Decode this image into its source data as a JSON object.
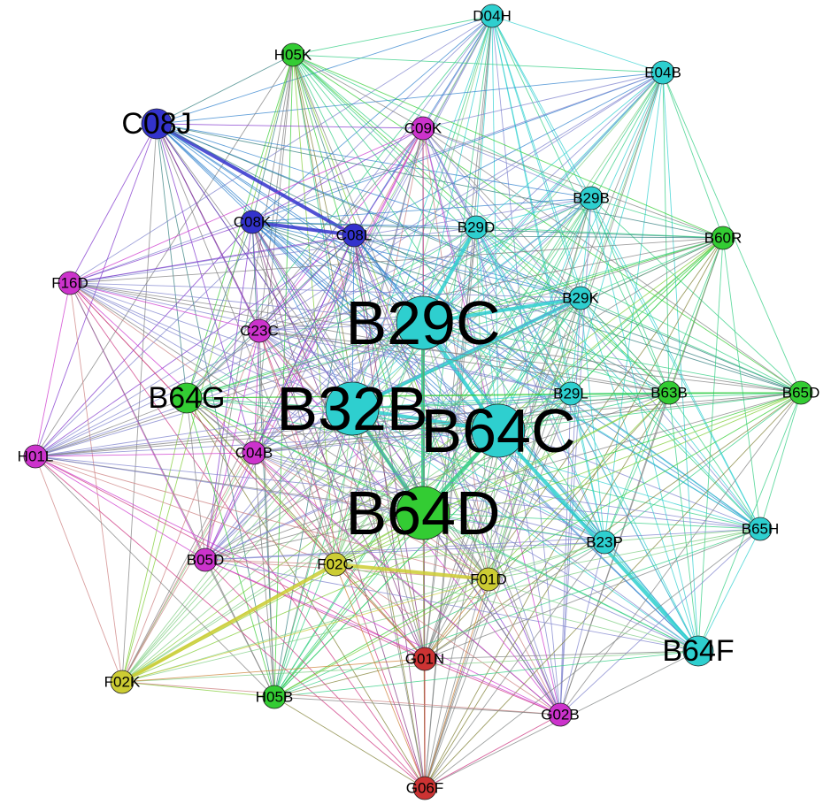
{
  "palette": {
    "cyan": "#2ecfcf",
    "green": "#33cc33",
    "blue": "#3333cc",
    "magenta": "#cc33cc",
    "yellow": "#cccc33",
    "red": "#cc3333"
  },
  "nodes": [
    {
      "id": "D04H",
      "label": "D04H",
      "color": "cyan",
      "size": "small"
    },
    {
      "id": "E04B",
      "label": "E04B",
      "color": "cyan",
      "size": "small"
    },
    {
      "id": "H05K",
      "label": "H05K",
      "color": "green",
      "size": "small"
    },
    {
      "id": "C08J",
      "label": "C08J",
      "color": "blue",
      "size": "medium"
    },
    {
      "id": "C09K",
      "label": "C09K",
      "color": "magenta",
      "size": "small"
    },
    {
      "id": "B29B",
      "label": "B29B",
      "color": "cyan",
      "size": "small"
    },
    {
      "id": "C08K",
      "label": "C08K",
      "color": "blue",
      "size": "small"
    },
    {
      "id": "C08L",
      "label": "C08L",
      "color": "blue",
      "size": "small"
    },
    {
      "id": "B29D",
      "label": "B29D",
      "color": "cyan",
      "size": "small"
    },
    {
      "id": "B60R",
      "label": "B60R",
      "color": "green",
      "size": "small"
    },
    {
      "id": "F16D",
      "label": "F16D",
      "color": "magenta",
      "size": "small"
    },
    {
      "id": "B29K",
      "label": "B29K",
      "color": "cyan",
      "size": "small"
    },
    {
      "id": "B29C",
      "label": "B29C",
      "color": "cyan",
      "size": "huge"
    },
    {
      "id": "C23C",
      "label": "C23C",
      "color": "magenta",
      "size": "small"
    },
    {
      "id": "B64G",
      "label": "B64G",
      "color": "green",
      "size": "medium"
    },
    {
      "id": "B32B",
      "label": "B32B",
      "color": "cyan",
      "size": "huge"
    },
    {
      "id": "B29L",
      "label": "B29L",
      "color": "cyan",
      "size": "small"
    },
    {
      "id": "B63B",
      "label": "B63B",
      "color": "green",
      "size": "small"
    },
    {
      "id": "B65D",
      "label": "B65D",
      "color": "green",
      "size": "small"
    },
    {
      "id": "B64C",
      "label": "B64C",
      "color": "cyan",
      "size": "huge"
    },
    {
      "id": "H01L",
      "label": "H01L",
      "color": "magenta",
      "size": "small"
    },
    {
      "id": "C04B",
      "label": "C04B",
      "color": "magenta",
      "size": "small"
    },
    {
      "id": "B64D",
      "label": "B64D",
      "color": "green",
      "size": "huge"
    },
    {
      "id": "B65H",
      "label": "B65H",
      "color": "cyan",
      "size": "small"
    },
    {
      "id": "B05D",
      "label": "B05D",
      "color": "magenta",
      "size": "small"
    },
    {
      "id": "B23P",
      "label": "B23P",
      "color": "cyan",
      "size": "small"
    },
    {
      "id": "F02C",
      "label": "F02C",
      "color": "yellow",
      "size": "small"
    },
    {
      "id": "F01D",
      "label": "F01D",
      "color": "yellow",
      "size": "small"
    },
    {
      "id": "B64F",
      "label": "B64F",
      "color": "cyan",
      "size": "medium"
    },
    {
      "id": "G01N",
      "label": "G01N",
      "color": "red",
      "size": "small"
    },
    {
      "id": "F02K",
      "label": "F02K",
      "color": "yellow",
      "size": "small"
    },
    {
      "id": "H05B",
      "label": "H05B",
      "color": "green",
      "size": "small"
    },
    {
      "id": "G02B",
      "label": "G02B",
      "color": "magenta",
      "size": "small"
    },
    {
      "id": "G06F",
      "label": "G06F",
      "color": "red",
      "size": "small"
    }
  ],
  "strong_edges": [
    [
      "B29C",
      "B32B"
    ],
    [
      "B29C",
      "B64C"
    ],
    [
      "B32B",
      "B64C"
    ],
    [
      "B32B",
      "B64D"
    ],
    [
      "B64C",
      "B64D"
    ],
    [
      "B29C",
      "B64D"
    ],
    [
      "C08J",
      "C08L"
    ],
    [
      "C08J",
      "C08K"
    ],
    [
      "C08K",
      "C08L"
    ],
    [
      "C08J",
      "B32B"
    ],
    [
      "B64C",
      "B64F"
    ],
    [
      "B29C",
      "B29K"
    ],
    [
      "B29C",
      "B29D"
    ],
    [
      "B32B",
      "B29K"
    ],
    [
      "F02C",
      "F01D"
    ],
    [
      "F02K",
      "F02C"
    ]
  ]
}
